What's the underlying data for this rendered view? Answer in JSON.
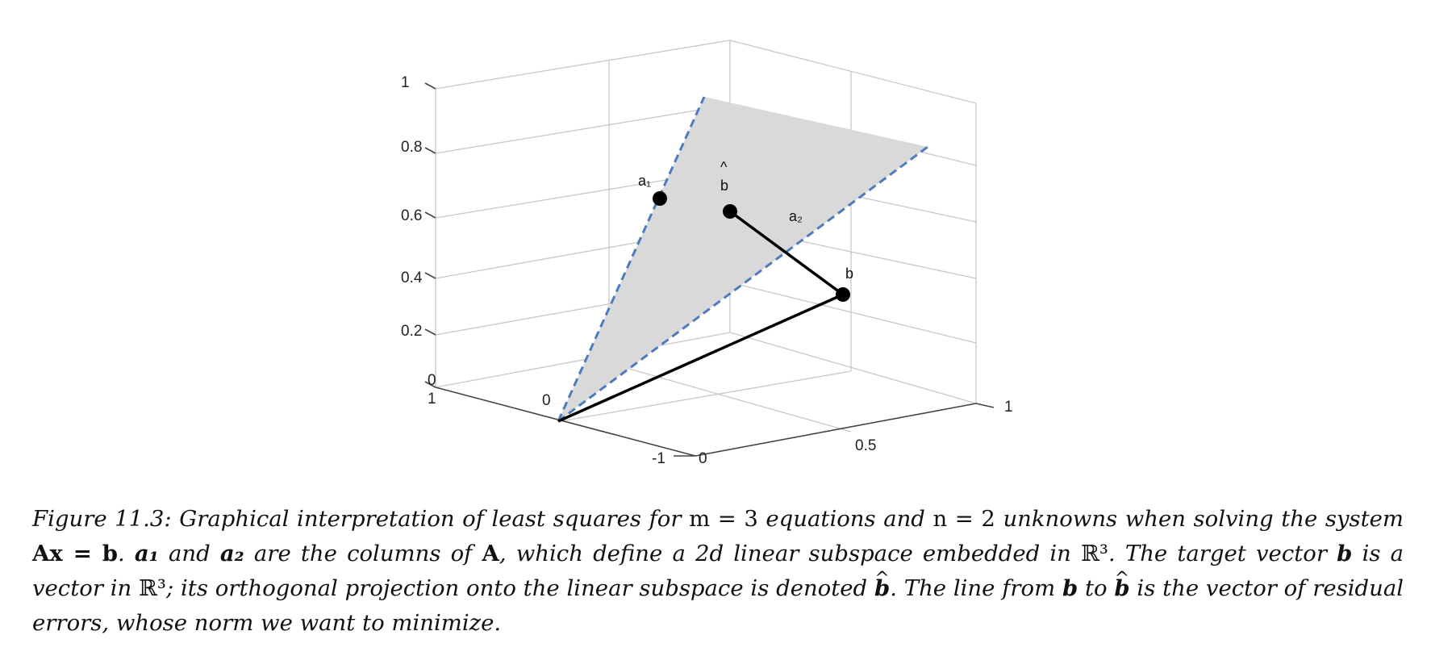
{
  "figure": {
    "z_ticks": [
      "1",
      "0.8",
      "0.6",
      "0.4",
      "0.2",
      "0"
    ],
    "left_depth_tick": "1",
    "near_axis_ticks": [
      "-1",
      "0"
    ],
    "right_axis_ticks": [
      "0.5",
      "1"
    ],
    "origin_label": "0",
    "points": [
      {
        "name": "a1",
        "label": "a₁"
      },
      {
        "name": "b-hat",
        "label": "b",
        "accent": "^"
      },
      {
        "name": "a2",
        "label": "a₂"
      },
      {
        "name": "b",
        "label": "b"
      }
    ],
    "colors": {
      "plane_fill": "#d9d9d9",
      "dashed_line": "#4f7bbd",
      "grid": "#c8c8c8",
      "axis": "#444444",
      "vectors": "#000000"
    }
  },
  "caption": {
    "seg1": "Figure 11.3: Graphical interpretation of least squares for",
    "m_eq": "m = 3",
    "seg2": "equations and",
    "n_eq": "n = 2",
    "seg3": "unknowns when solving the system",
    "system": "Ax = b",
    "seg4": ".",
    "a1": "a₁",
    "seg5": "and",
    "a2": "a₂",
    "seg6": "are the columns of",
    "A": "A",
    "seg7": ", which define a 2d linear subspace embedded in",
    "R3a": "ℝ³",
    "seg8": ". The target vector",
    "b1": "b",
    "seg9": "is a vector in",
    "R3b": "ℝ³",
    "seg10": "; its orthogonal projection onto the linear subspace is denoted",
    "bhat1": "b",
    "seg11": ". The line from",
    "b2": "b",
    "seg12": "to",
    "bhat2": "b",
    "seg13": "is the vector of residual errors, whose norm we want to minimize."
  }
}
